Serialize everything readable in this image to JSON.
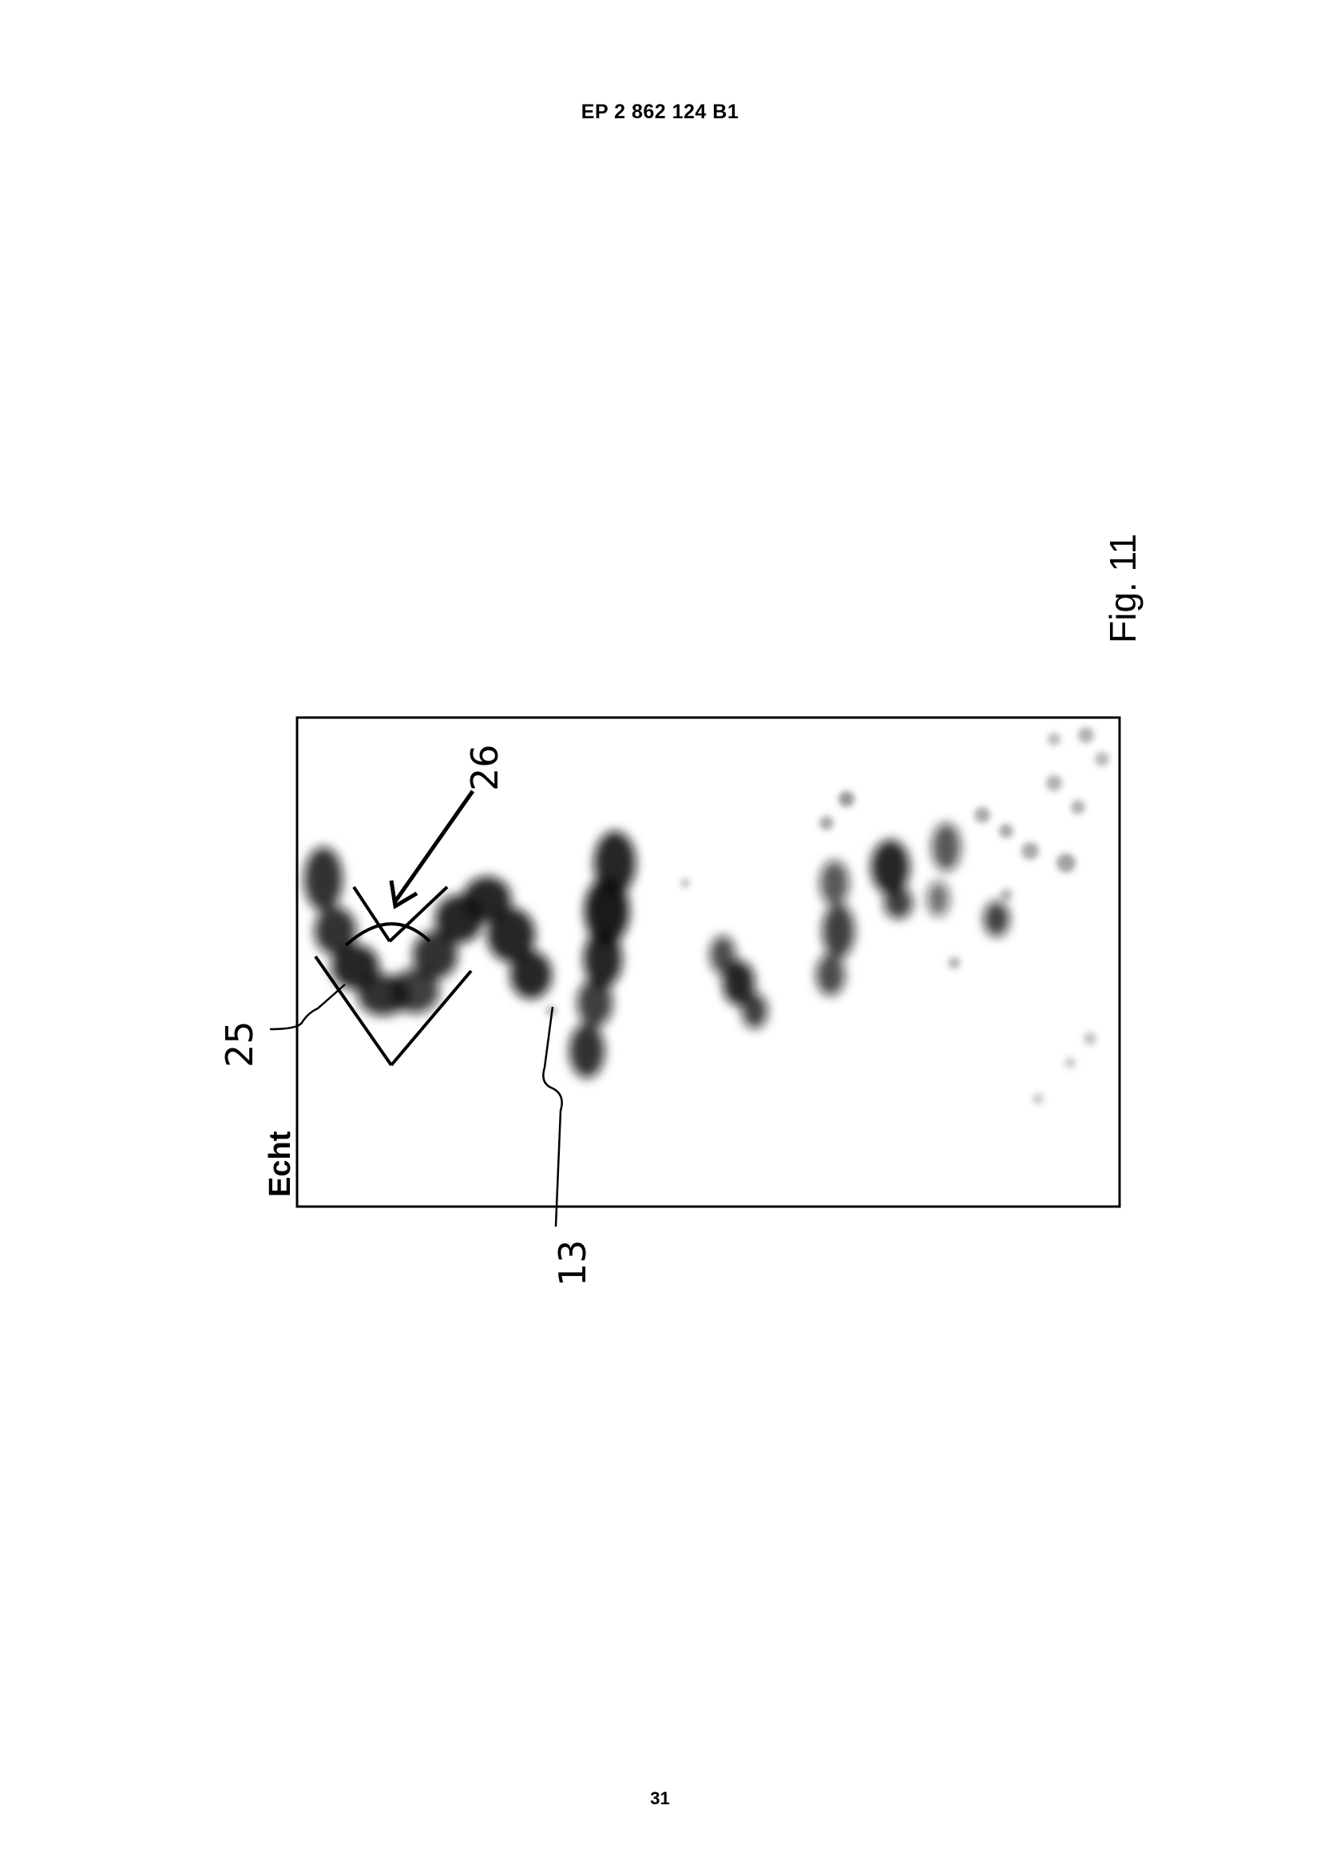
{
  "header": {
    "document_number": "EP 2 862 124 B1"
  },
  "figure": {
    "caption": "Fig. 11",
    "panel_label": "Echt",
    "references": {
      "ref_25": "25",
      "ref_26": "26",
      "ref_13": "13"
    }
  },
  "footer": {
    "page_number": "31"
  }
}
